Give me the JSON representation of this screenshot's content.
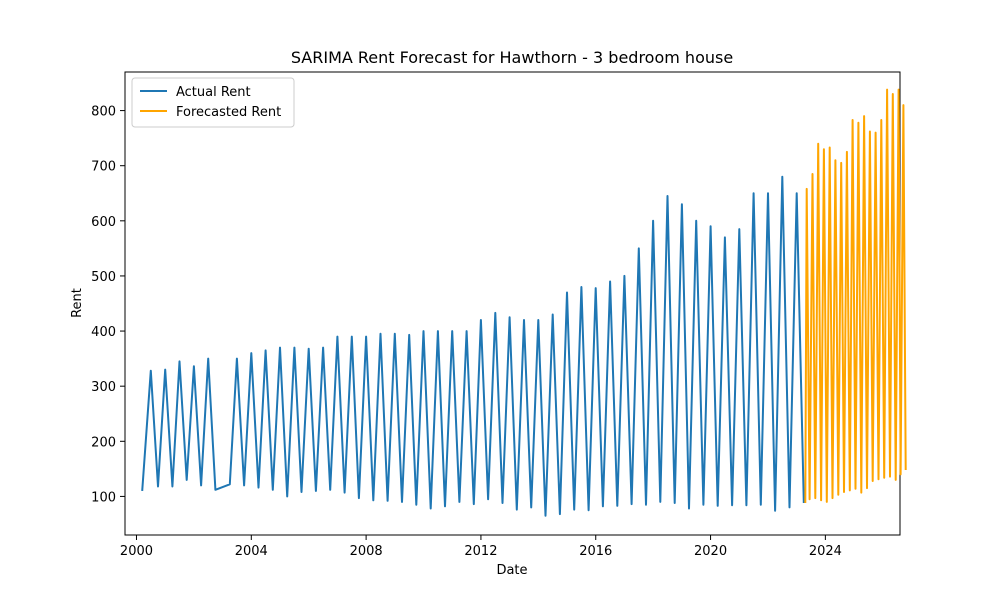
{
  "chart_data": {
    "type": "line",
    "title": "SARIMA Rent Forecast for Hawthorn - 3 bedroom house",
    "xlabel": "Date",
    "ylabel": "Rent",
    "xlim": [
      1999.6,
      2026.6
    ],
    "ylim": [
      30,
      870
    ],
    "x_ticks": [
      2000,
      2004,
      2008,
      2012,
      2016,
      2020,
      2024
    ],
    "y_ticks": [
      100,
      200,
      300,
      400,
      500,
      600,
      700,
      800
    ],
    "legend_position": "top-left",
    "grid": false,
    "series": [
      {
        "name": "Actual Rent",
        "color": "#1f77b4",
        "points": [
          [
            2000.2,
            110
          ],
          [
            2000.5,
            328
          ],
          [
            2000.75,
            118
          ],
          [
            2001.0,
            330
          ],
          [
            2001.25,
            118
          ],
          [
            2001.5,
            345
          ],
          [
            2001.75,
            130
          ],
          [
            2002.0,
            336
          ],
          [
            2002.25,
            120
          ],
          [
            2002.5,
            350
          ],
          [
            2002.75,
            112
          ],
          [
            2003.25,
            122
          ],
          [
            2003.5,
            350
          ],
          [
            2003.75,
            120
          ],
          [
            2004.0,
            360
          ],
          [
            2004.25,
            116
          ],
          [
            2004.5,
            365
          ],
          [
            2004.75,
            112
          ],
          [
            2005.0,
            370
          ],
          [
            2005.25,
            100
          ],
          [
            2005.5,
            370
          ],
          [
            2005.75,
            108
          ],
          [
            2006.0,
            368
          ],
          [
            2006.25,
            110
          ],
          [
            2006.5,
            370
          ],
          [
            2006.75,
            112
          ],
          [
            2007.0,
            390
          ],
          [
            2007.25,
            107
          ],
          [
            2007.5,
            390
          ],
          [
            2007.75,
            97
          ],
          [
            2008.0,
            390
          ],
          [
            2008.25,
            93
          ],
          [
            2008.5,
            395
          ],
          [
            2008.75,
            92
          ],
          [
            2009.0,
            395
          ],
          [
            2009.25,
            90
          ],
          [
            2009.5,
            393
          ],
          [
            2009.75,
            85
          ],
          [
            2010.0,
            400
          ],
          [
            2010.25,
            78
          ],
          [
            2010.5,
            400
          ],
          [
            2010.75,
            82
          ],
          [
            2011.0,
            400
          ],
          [
            2011.25,
            90
          ],
          [
            2011.5,
            400
          ],
          [
            2011.75,
            86
          ],
          [
            2012.0,
            420
          ],
          [
            2012.25,
            95
          ],
          [
            2012.5,
            433
          ],
          [
            2012.75,
            88
          ],
          [
            2013.0,
            425
          ],
          [
            2013.25,
            76
          ],
          [
            2013.5,
            420
          ],
          [
            2013.75,
            80
          ],
          [
            2014.0,
            420
          ],
          [
            2014.25,
            65
          ],
          [
            2014.5,
            430
          ],
          [
            2014.75,
            68
          ],
          [
            2015.0,
            470
          ],
          [
            2015.25,
            76
          ],
          [
            2015.5,
            480
          ],
          [
            2015.75,
            75
          ],
          [
            2016.0,
            478
          ],
          [
            2016.25,
            82
          ],
          [
            2016.5,
            490
          ],
          [
            2016.75,
            83
          ],
          [
            2017.0,
            500
          ],
          [
            2017.25,
            86
          ],
          [
            2017.5,
            550
          ],
          [
            2017.75,
            85
          ],
          [
            2018.0,
            600
          ],
          [
            2018.25,
            90
          ],
          [
            2018.5,
            645
          ],
          [
            2018.75,
            88
          ],
          [
            2019.0,
            630
          ],
          [
            2019.25,
            78
          ],
          [
            2019.5,
            600
          ],
          [
            2019.75,
            85
          ],
          [
            2020.0,
            590
          ],
          [
            2020.25,
            83
          ],
          [
            2020.5,
            570
          ],
          [
            2020.75,
            84
          ],
          [
            2021.0,
            585
          ],
          [
            2021.25,
            84
          ],
          [
            2021.5,
            650
          ],
          [
            2021.75,
            85
          ],
          [
            2022.0,
            650
          ],
          [
            2022.25,
            74
          ],
          [
            2022.5,
            680
          ],
          [
            2022.75,
            80
          ],
          [
            2023.0,
            650
          ],
          [
            2023.25,
            88
          ]
        ]
      },
      {
        "name": "Forecasted Rent",
        "color": "#ffa500",
        "points": [
          [
            2023.3,
            88
          ],
          [
            2023.35,
            658
          ],
          [
            2023.45,
            95
          ],
          [
            2023.55,
            685
          ],
          [
            2023.65,
            97
          ],
          [
            2023.75,
            740
          ],
          [
            2023.85,
            93
          ],
          [
            2023.95,
            730
          ],
          [
            2024.05,
            90
          ],
          [
            2024.15,
            733
          ],
          [
            2024.25,
            97
          ],
          [
            2024.35,
            710
          ],
          [
            2024.45,
            103
          ],
          [
            2024.55,
            705
          ],
          [
            2024.65,
            108
          ],
          [
            2024.75,
            725
          ],
          [
            2024.85,
            111
          ],
          [
            2024.95,
            783
          ],
          [
            2025.05,
            114
          ],
          [
            2025.15,
            778
          ],
          [
            2025.25,
            107
          ],
          [
            2025.35,
            790
          ],
          [
            2025.45,
            115
          ],
          [
            2025.55,
            762
          ],
          [
            2025.65,
            128
          ],
          [
            2025.75,
            760
          ],
          [
            2025.85,
            131
          ],
          [
            2025.95,
            783
          ],
          [
            2026.05,
            134
          ],
          [
            2026.15,
            838
          ],
          [
            2026.25,
            136
          ],
          [
            2026.35,
            830
          ],
          [
            2026.45,
            130
          ],
          [
            2026.55,
            838
          ],
          [
            2026.62,
            140
          ],
          [
            2026.72,
            810
          ],
          [
            2026.8,
            148
          ]
        ]
      }
    ]
  }
}
